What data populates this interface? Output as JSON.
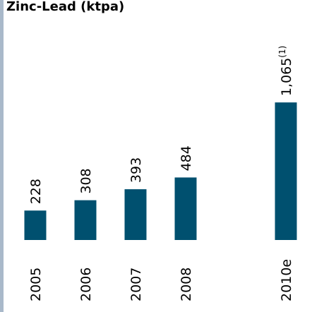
{
  "chart_data": {
    "type": "bar",
    "title": "Zinc-Lead (ktpa)",
    "categories": [
      "2005",
      "2006",
      "2007",
      "2008",
      null,
      "2010e"
    ],
    "values": [
      228,
      308,
      393,
      484,
      null,
      1065
    ],
    "value_labels": [
      "228",
      "308",
      "393",
      "484",
      null,
      "1,065"
    ],
    "value_label_notes": [
      null,
      null,
      null,
      null,
      null,
      "(1)"
    ],
    "color": "#00506f"
  }
}
